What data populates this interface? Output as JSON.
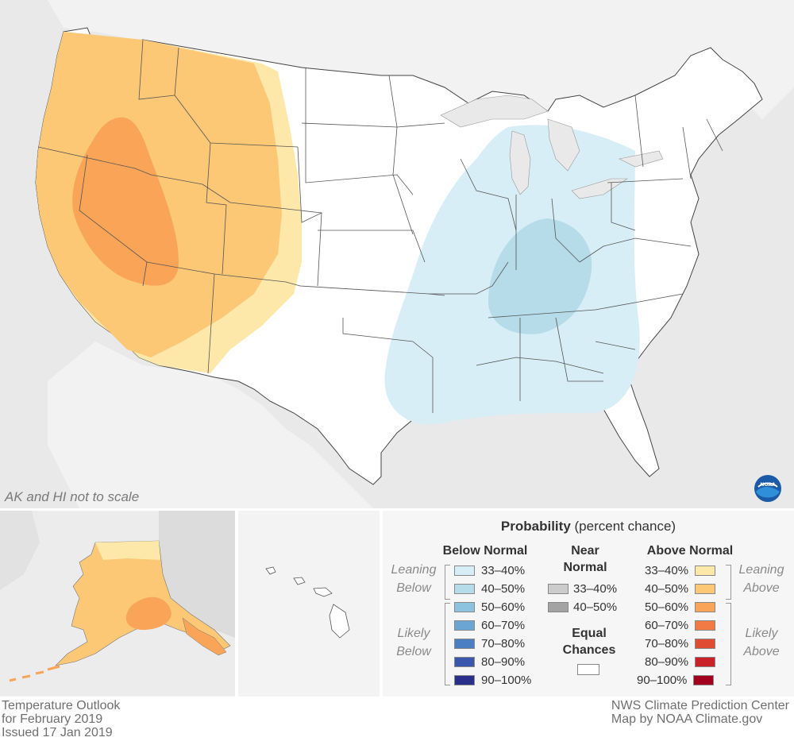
{
  "map": {
    "scale_note": "AK and HI not to scale",
    "logo_name": "noaa-logo"
  },
  "footer": {
    "left_line1": "Temperature Outlook",
    "left_line2": "for February 2019",
    "left_line3": "Issued 17 Jan 2019",
    "right_line1": "NWS Climate Prediction Center",
    "right_line2": "Map by NOAA Climate.gov"
  },
  "legend": {
    "title_bold": "Probability",
    "title_rest": " (percent chance)",
    "below_header": "Below Normal",
    "near_header_1": "Near",
    "near_header_2": "Normal",
    "above_header": "Above Normal",
    "equal_header_1": "Equal",
    "equal_header_2": "Chances",
    "leaning_below_1": "Leaning",
    "leaning_below_2": "Below",
    "likely_below_1": "Likely",
    "likely_below_2": "Below",
    "leaning_above_1": "Leaning",
    "leaning_above_2": "Above",
    "likely_above_1": "Likely",
    "likely_above_2": "Above",
    "below": [
      {
        "label": "33–40%",
        "color": "#d7eef6"
      },
      {
        "label": "40–50%",
        "color": "#b6dbe9"
      },
      {
        "label": "50–60%",
        "color": "#8dc3de"
      },
      {
        "label": "60–70%",
        "color": "#6aa5d3"
      },
      {
        "label": "70–80%",
        "color": "#4a7fc4"
      },
      {
        "label": "80–90%",
        "color": "#3b56ad"
      },
      {
        "label": "90–100%",
        "color": "#2b2f8c"
      }
    ],
    "near": [
      {
        "label": "33–40%",
        "color": "#cccccc"
      },
      {
        "label": "40–50%",
        "color": "#a3a3a3"
      }
    ],
    "above": [
      {
        "label": "33–40%",
        "color": "#fde8aa"
      },
      {
        "label": "40–50%",
        "color": "#fcc876"
      },
      {
        "label": "50–60%",
        "color": "#f9a457"
      },
      {
        "label": "60–70%",
        "color": "#f27a44"
      },
      {
        "label": "70–80%",
        "color": "#e04b34"
      },
      {
        "label": "80–90%",
        "color": "#c92228"
      },
      {
        "label": "90–100%",
        "color": "#a3001e"
      }
    ],
    "equal_color": "#ffffff"
  }
}
